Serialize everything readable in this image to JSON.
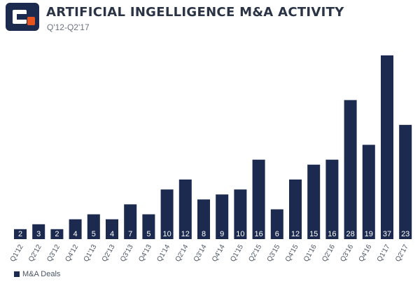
{
  "header": {
    "title": "ARTIFICIAL INGELLIGENCE M&A ACTIVITY",
    "subtitle": "Q'12-Q2'17",
    "logo_icon": "cb-insights-logo-icon",
    "logo_colors": {
      "primary": "#1b2a4e",
      "accent": "#e8541e"
    }
  },
  "chart_data": {
    "type": "bar",
    "title": "ARTIFICIAL INGELLIGENCE M&A ACTIVITY",
    "subtitle": "Q'12-Q2'17",
    "xlabel": "",
    "ylabel": "",
    "categories": [
      "Q1'12",
      "Q2'12",
      "Q3'12",
      "Q4'12",
      "Q1'13",
      "Q2'13",
      "Q3'13",
      "Q4'13",
      "Q1'14",
      "Q2'14",
      "Q3'14",
      "Q4'14",
      "Q1'15",
      "Q2'15",
      "Q3'15",
      "Q4'15",
      "Q1'16",
      "Q2'16",
      "Q3'16",
      "Q4'16",
      "Q1'17",
      "Q2'17"
    ],
    "series": [
      {
        "name": "M&A Deals",
        "values": [
          2,
          3,
          2,
          4,
          5,
          4,
          7,
          5,
          10,
          12,
          8,
          9,
          10,
          16,
          6,
          12,
          15,
          16,
          28,
          19,
          37,
          23
        ]
      }
    ],
    "ylim": [
      0,
      37
    ],
    "grid": false,
    "legend_position": "bottom-left",
    "bar_color": "#1b2a4e",
    "label_color": "#ffffff",
    "tick_label_color": "#4b5563"
  }
}
